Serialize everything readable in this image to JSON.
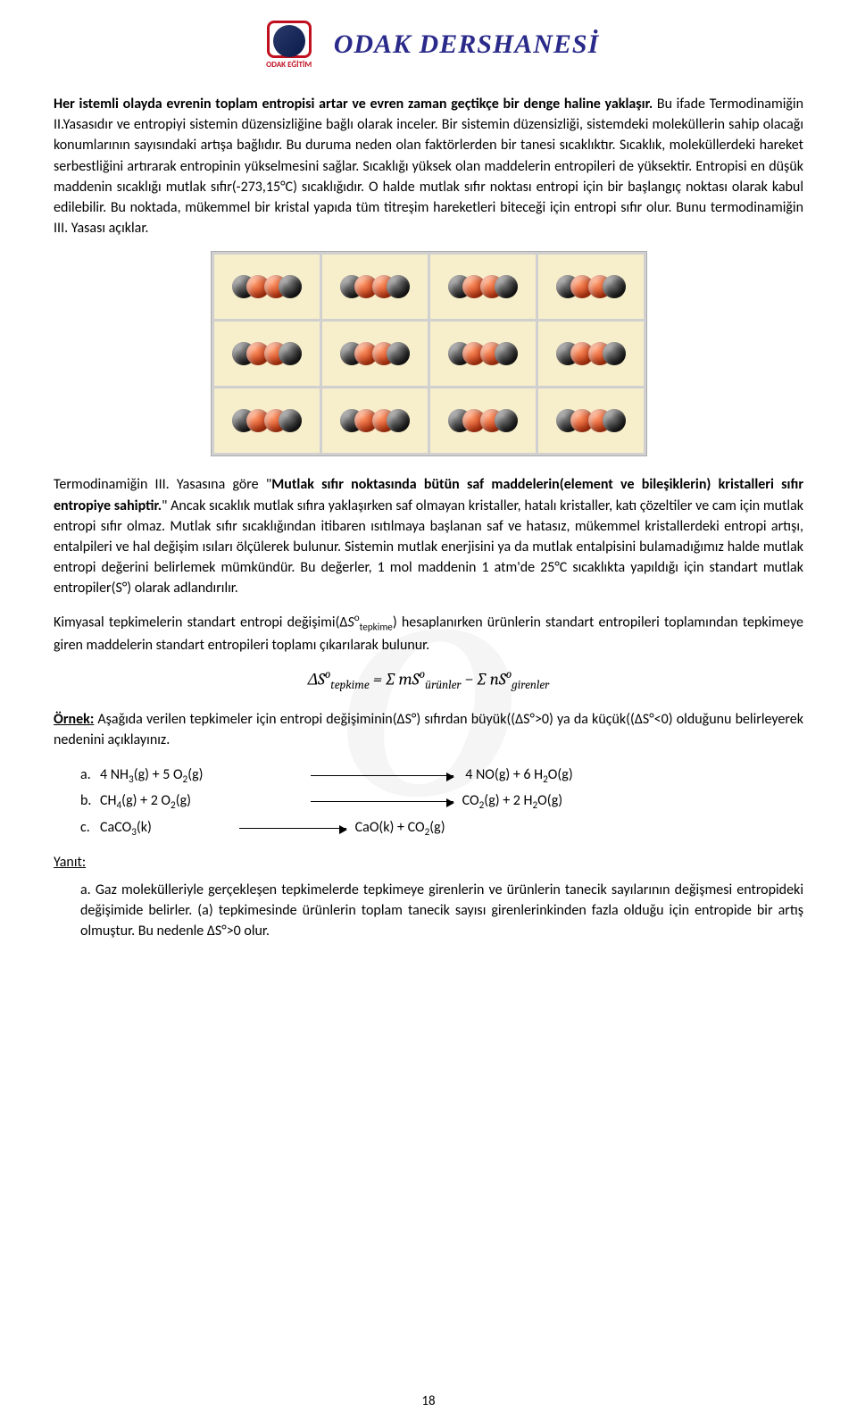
{
  "logo": {
    "main": "ODAK DERSHANESİ",
    "sub": "ODAK EĞİTİM"
  },
  "watermark": "O",
  "para1": {
    "lead": "Her istemli olayda evrenin toplam entropisi artar ve evren zaman geçtikçe bir denge haline yaklaşır.",
    "rest": " Bu ifade Termodinamiğin II.Yasasıdır ve entropiyi sistemin düzensizliğine bağlı olarak inceler. Bir sistemin düzensizliği, sistemdeki moleküllerin sahip olacağı konumlarının sayısındaki artışa bağlıdır. Bu duruma neden olan faktörlerden bir tanesi sıcaklıktır. Sıcaklık, moleküllerdeki hareket serbestliğini artırarak entropinin yükselmesini sağlar. Sıcaklığı yüksek olan maddelerin entropileri de yüksektir. Entropisi en düşük maddenin sıcaklığı mutlak sıfır(-273,15°C) sıcaklığıdır. O halde mutlak sıfır noktası entropi için bir başlangıç noktası olarak kabul edilebilir. Bu noktada, mükemmel bir kristal yapıda tüm titreşim hareketleri biteceği için entropi sıfır olur. Bunu termodinamiğin III. Yasası açıklar."
  },
  "molecule_grid": {
    "rows": 3,
    "cols": 4,
    "cell_bg": "#f7eecb",
    "grid_bg": "#d0d0d0",
    "atom_dark": "#1a1a1a",
    "atom_orange": "#d03a10",
    "pattern_note": "each cell 2 pairs overlapping: dark-orange orange-dark"
  },
  "para2": {
    "pre": "Termodinamiğin III. Yasasına göre \"",
    "quote": "Mutlak sıfır noktasında bütün saf maddelerin(element ve bileşiklerin) kristalleri sıfır entropiye sahiptir.",
    "post": "\" Ancak sıcaklık mutlak sıfıra yaklaşırken saf olmayan kristaller, hatalı kristaller, katı çözeltiler ve cam için mutlak entropi sıfır olmaz. Mutlak sıfır sıcaklığından itibaren ısıtılmaya başlanan saf ve hatasız, mükemmel kristallerdeki entropi artışı, entalpileri ve hal değişim ısıları ölçülerek bulunur. Sistemin mutlak enerjisini ya da mutlak entalpisini bulamadığımız halde mutlak entropi değerini belirlemek mümkündür. Bu değerler, 1 mol maddenin 1 atm'de 25°C sıcaklıkta yapıldığı için standart mutlak entropiler(S°) olarak adlandırılır."
  },
  "para3": "Kimyasal tepkimelerin standart entropi değişimi(ΔS°tepkime) hesaplanırken ürünlerin standart entropileri toplamından tepkimeye giren maddelerin standart entropileri toplamı çıkarılarak bulunur.",
  "formula": {
    "lhs": "ΔS",
    "lhs_sub": "tepkime",
    "eq": " = ",
    "sum1": "∑ mS",
    "sum1_sub": "ürünler",
    "minus": " − ",
    "sum2": "∑ nS",
    "sum2_sub": "girenler",
    "sup": "o"
  },
  "example": {
    "label": "Örnek:",
    "text": " Aşağıda verilen tepkimeler için entropi değişiminin(ΔS°) sıfırdan büyük((ΔS°>0) ya da küçük((ΔS°<0) olduğunu belirleyerek nedenini açıklayınız."
  },
  "reactions": {
    "a": {
      "label": "a.",
      "left": "4 NH₃(g) + 5 O₂(g)",
      "right": "4 NO(g) + 6 H₂O(g)"
    },
    "b": {
      "label": "b.",
      "left": "CH₄(g) + 2 O₂(g)",
      "right": "CO₂(g) + 2 H₂O(g)"
    },
    "c": {
      "label": "c.",
      "left": "CaCO₃(k)",
      "right": "CaO(k) + CO₂(g)"
    }
  },
  "answer": {
    "label": "Yanıt:",
    "a": {
      "label": "a.",
      "text": "Gaz molekülleriyle gerçekleşen tepkimelerde tepkimeye girenlerin ve ürünlerin tanecik sayılarının değişmesi entropideki değişimide belirler. (a) tepkimesinde ürünlerin toplam tanecik sayısı girenlerinkinden fazla olduğu için entropide bir artış olmuştur. Bu nedenle ΔS°>0 olur."
    }
  },
  "page_number": "18",
  "colors": {
    "text": "#000000",
    "bg": "#ffffff",
    "logo_red": "#c01020",
    "logo_blue": "#2a2a8a",
    "watermark": "rgba(0,0,0,0.04)"
  }
}
